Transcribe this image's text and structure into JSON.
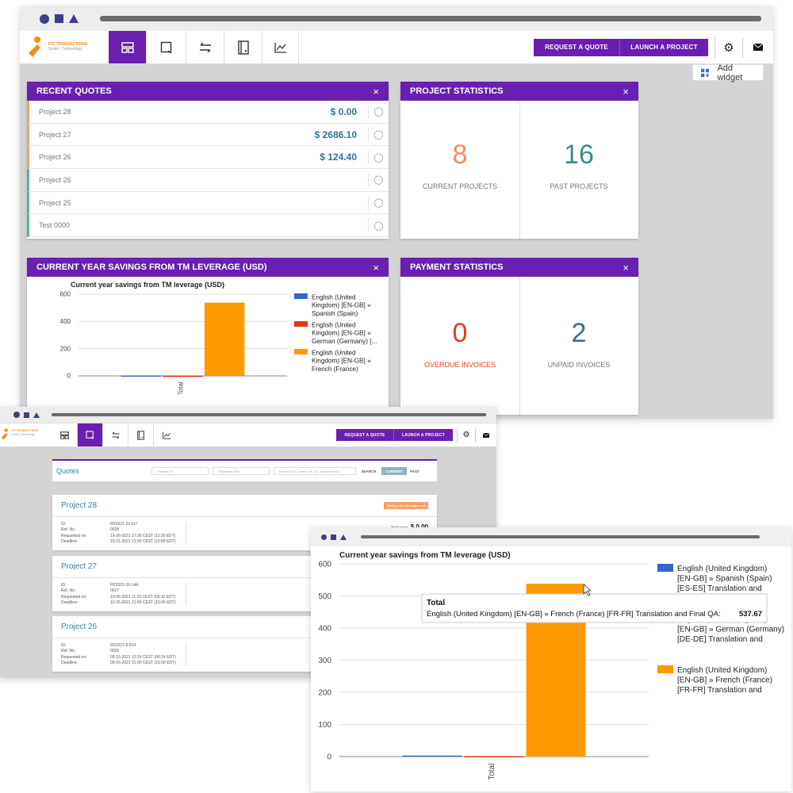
{
  "dashboard": {
    "logo": {
      "name": "ITC TRANSACTIONS",
      "tagline": "Smart | Technology"
    },
    "nav_icons": [
      "dashboard-icon",
      "quotes-icon",
      "transfer-icon",
      "invoice-icon",
      "statistics-icon"
    ],
    "request_quote_label": "REQUEST A QUOTE",
    "launch_project_label": "LAUNCH A PROJECT",
    "add_widget_label": "Add widget",
    "recent_quotes": {
      "title": "RECENT QUOTES",
      "rows": [
        {
          "name": "Project 28",
          "amount": "$ 0.00"
        },
        {
          "name": "Project 27",
          "amount": "$ 2686.10"
        },
        {
          "name": "Project 26",
          "amount": "$ 124.40"
        },
        {
          "name": "Project 26",
          "amount": ""
        },
        {
          "name": "Project 25",
          "amount": ""
        },
        {
          "name": "Test 0000",
          "amount": ""
        }
      ]
    },
    "project_stats": {
      "title": "PROJECT STATISTICS",
      "current_value": "8",
      "current_label": "CURRENT PROJECTS",
      "past_value": "16",
      "past_label": "PAST PROJECTS"
    },
    "savings_panel": {
      "title": "CURRENT YEAR SAVINGS FROM TM LEVERAGE (USD)"
    },
    "payment_stats": {
      "title": "PAYMENT STATISTICS",
      "overdue_value": "0",
      "overdue_label": "OVERDUE INVOICES",
      "unpaid_value": "2",
      "unpaid_label": "UNPAID INVOICES"
    },
    "close_symbol": "×"
  },
  "quotes_page": {
    "request_quote_label": "REQUEST A QUOTE",
    "launch_project_label": "LAUNCH A PROJECT",
    "title": "Quotes",
    "created_placeholder": "Created on",
    "expiration_placeholder": "Expiration Date",
    "search_placeholder": "Search by ID, name, ref. no., contact perso",
    "search_label": "SEARCH",
    "current_label": "CURRENT",
    "past_label": "PAST",
    "field_labels": {
      "id": "ID:",
      "ref": "Ref. No.:",
      "requested": "Requested on:",
      "deadline": "Deadline:"
    },
    "cards": [
      {
        "title": "Project 28",
        "status": "Waiting for your approval",
        "total_label": "Total cost",
        "total": "$ 0.00",
        "id": "FR2021-10-617",
        "ref": "0028",
        "requested": "10-26-2021 17:26 CEST (11:26 EDT)",
        "deadline": "10-21-2021 21:00 CEST (15:00 EDT)"
      },
      {
        "title": "Project 27",
        "id": "FR2021-10-144",
        "ref": "0027",
        "requested": "10-05-2021 11:10 CEST (05:10 EDT)",
        "deadline": "10-26-2021 21:00 CEST (15:00 EDT)"
      },
      {
        "title": "Project 26",
        "id": "FR2021-9-614",
        "ref": "0026",
        "requested": "09-16-2021 12:24 CEST (06:24 EDT)",
        "deadline": "09-16-2021 21:00 CEST (15:00 EDT)"
      }
    ]
  },
  "chart_data": [
    {
      "type": "bar",
      "title": "Current year savings from TM leverage (USD)",
      "categories": [
        "Total"
      ],
      "ylim": [
        0,
        600
      ],
      "yticks": [
        0,
        200,
        400,
        600
      ],
      "series": [
        {
          "name": "English (United Kingdom) [EN-GB] » Spanish (Spain) [ES-...",
          "values": [
            3
          ],
          "color": "#3366cc"
        },
        {
          "name": "English (United Kingdom) [EN-GB] » German (Germany) [...",
          "values": [
            1
          ],
          "color": "#dc3912"
        },
        {
          "name": "English (United Kingdom) [EN-GB] » French (France) [FR-...",
          "values": [
            537.67
          ],
          "color": "#ff9900"
        }
      ],
      "grid": true,
      "legend": "right"
    },
    {
      "type": "bar",
      "title": "Current year savings from TM leverage (USD)",
      "categories": [
        "Total"
      ],
      "ylim": [
        0,
        600
      ],
      "yticks": [
        0,
        100,
        200,
        300,
        400,
        500,
        600
      ],
      "series": [
        {
          "name": "English (United Kingdom) [EN-GB] » Spanish (Spain) [ES-ES] Translation and Final QA",
          "values": [
            3
          ],
          "color": "#3366cc"
        },
        {
          "name": "English (United Kingdom) [EN-GB] » German (Germany) [DE-DE] Translation and Final QA",
          "values": [
            1
          ],
          "color": "#dc3912"
        },
        {
          "name": "English (United Kingdom) [EN-GB] » French (France) [FR-FR] Translation and Final QA",
          "values": [
            537.67
          ],
          "color": "#ff9900"
        }
      ],
      "grid": true,
      "legend": "right",
      "tooltip": {
        "title": "Total",
        "label": "English (United Kingdom) [EN-GB] » French (France) [FR-FR] Translation and Final QA:",
        "value": "537.67"
      }
    }
  ],
  "colors": {
    "accent": "#6a1fb0",
    "orange": "#f0905a",
    "teal": "#3d8b8b",
    "red": "#e53a1e",
    "slate": "#3e6f86"
  }
}
